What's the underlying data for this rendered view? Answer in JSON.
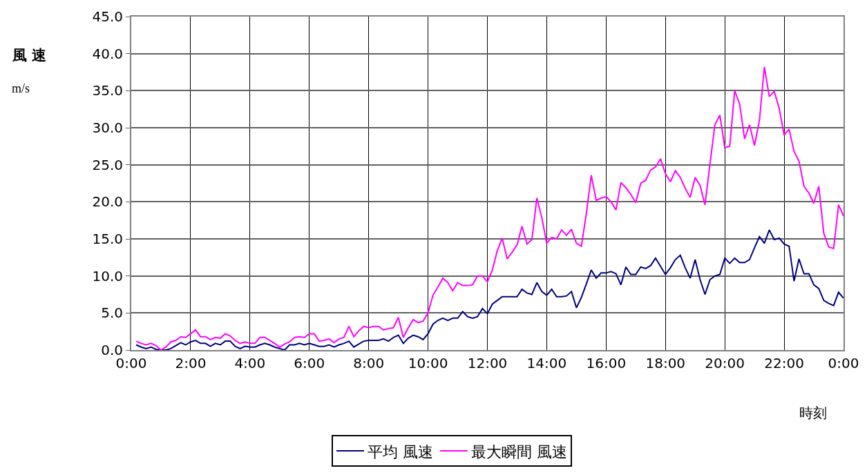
{
  "chart_data": {
    "type": "line",
    "ylabel": "風 速\nm/s",
    "xlabel": "時刻",
    "x": [
      0.167,
      0.333,
      0.5,
      0.667,
      0.833,
      1,
      1.167,
      1.333,
      1.5,
      1.667,
      1.833,
      2,
      2.167,
      2.333,
      2.5,
      2.667,
      2.833,
      3,
      3.167,
      3.333,
      3.5,
      3.667,
      3.833,
      4,
      4.167,
      4.333,
      4.5,
      4.667,
      4.833,
      5,
      5.167,
      5.333,
      5.5,
      5.667,
      5.833,
      6,
      6.167,
      6.333,
      6.5,
      6.667,
      6.833,
      7,
      7.167,
      7.333,
      7.5,
      7.667,
      7.833,
      8,
      8.167,
      8.333,
      8.5,
      8.667,
      8.833,
      9,
      9.167,
      9.333,
      9.5,
      9.667,
      9.833,
      10,
      10.167,
      10.333,
      10.5,
      10.667,
      10.833,
      11,
      11.167,
      11.333,
      11.5,
      11.667,
      11.833,
      12,
      12.167,
      12.333,
      12.5,
      12.667,
      12.833,
      13,
      13.167,
      13.333,
      13.5,
      13.667,
      13.833,
      14,
      14.167,
      14.333,
      14.5,
      14.667,
      14.833,
      15,
      15.167,
      15.333,
      15.5,
      15.667,
      15.833,
      16,
      16.167,
      16.333,
      16.5,
      16.667,
      16.833,
      17,
      17.167,
      17.333,
      17.5,
      17.667,
      17.833,
      18,
      18.167,
      18.333,
      18.5,
      18.667,
      18.833,
      19,
      19.167,
      19.333,
      19.5,
      19.667,
      19.833,
      20,
      20.167,
      20.333,
      20.5,
      20.667,
      20.833,
      21,
      21.167,
      21.333,
      21.5,
      21.667,
      21.833,
      22,
      22.167,
      22.333,
      22.5,
      22.667,
      22.833,
      23,
      23.167,
      23.333,
      23.5,
      23.667,
      23.833,
      24
    ],
    "series": [
      {
        "name": "平均 風速",
        "color": "#000080",
        "values": [
          0.7,
          0.4,
          0.2,
          0.4,
          0.1,
          0,
          0,
          0.2,
          0.6,
          1.0,
          0.7,
          1.1,
          1.3,
          0.9,
          0.9,
          0.5,
          0.9,
          0.7,
          1.2,
          1.2,
          0.5,
          0.2,
          0.5,
          0.4,
          0.4,
          0.7,
          0.9,
          0.7,
          0.4,
          0.2,
          0,
          0.7,
          0.7,
          0.9,
          0.7,
          0.9,
          0.7,
          0.5,
          0.5,
          0.7,
          0.4,
          0.7,
          0.9,
          1.2,
          0.4,
          0.8,
          1.2,
          1.3,
          1.3,
          1.3,
          1.5,
          1.2,
          1.7,
          2.0,
          0.9,
          1.6,
          2.0,
          1.8,
          1.4,
          2.2,
          3.5,
          4.0,
          4.3,
          4.0,
          4.3,
          4.3,
          5.2,
          4.5,
          4.3,
          4.5,
          5.6,
          4.9,
          6.2,
          6.7,
          7.2,
          7.2,
          7.2,
          7.2,
          8.2,
          7.7,
          7.5,
          9.1,
          7.9,
          7.4,
          8.2,
          7.2,
          7.2,
          7.3,
          7.9,
          5.7,
          7.1,
          8.9,
          10.8,
          9.7,
          10.4,
          10.4,
          10.6,
          10.3,
          8.8,
          11.2,
          10.2,
          10.2,
          11.2,
          11.0,
          11.4,
          12.4,
          11.3,
          10.2,
          11.1,
          12.2,
          12.8,
          11.1,
          9.7,
          12.2,
          9.5,
          7.5,
          9.5,
          10.0,
          10.2,
          12.4,
          11.7,
          12.4,
          11.8,
          11.8,
          12.2,
          13.8,
          15.3,
          14.4,
          16.2,
          14.9,
          15.1,
          14.3,
          14.0,
          9.3,
          12.3,
          10.3,
          10.3,
          8.8,
          8.3,
          6.7,
          6.3,
          6.0,
          7.8,
          7.0
        ]
      },
      {
        "name": "最大瞬間 風速",
        "color": "#ff00ff",
        "values": [
          1.2,
          0.9,
          0.7,
          0.9,
          0.6,
          0,
          0.4,
          1.1,
          1.3,
          1.8,
          1.7,
          2.2,
          2.7,
          1.8,
          1.8,
          1.4,
          1.7,
          1.6,
          2.2,
          1.9,
          1.3,
          0.9,
          1.1,
          0.9,
          0.9,
          1.7,
          1.7,
          1.3,
          0.9,
          0.4,
          0.8,
          1.1,
          1.7,
          1.8,
          1.7,
          2.2,
          2.2,
          1.2,
          1.3,
          1.5,
          1.0,
          1.5,
          1.7,
          3.2,
          1.8,
          2.6,
          3.2,
          3.0,
          3.2,
          3.2,
          2.7,
          2.9,
          3.0,
          4.4,
          1.7,
          3.0,
          4.1,
          3.7,
          3.9,
          5.0,
          7.4,
          8.5,
          9.7,
          9.1,
          8.0,
          9.1,
          8.7,
          8.7,
          8.8,
          10.0,
          10.0,
          9.2,
          10.8,
          13.4,
          15.1,
          12.3,
          13.2,
          14.2,
          16.7,
          14.3,
          14.9,
          20.5,
          17.9,
          14.4,
          15.2,
          15.0,
          16.2,
          15.5,
          16.3,
          14.4,
          14.0,
          18.4,
          23.6,
          20.2,
          20.5,
          20.7,
          20.0,
          18.9,
          22.6,
          21.9,
          21.0,
          19.9,
          22.5,
          22.9,
          24.3,
          24.7,
          25.8,
          23.8,
          22.7,
          24.2,
          23.3,
          21.8,
          20.6,
          23.3,
          22.2,
          19.6,
          25.1,
          30.4,
          31.7,
          27.3,
          27.5,
          35.0,
          33.2,
          28.5,
          30.4,
          27.6,
          31.0,
          38.2,
          34.2,
          34.9,
          32.6,
          29.0,
          29.8,
          26.8,
          25.5,
          22.1,
          21.2,
          19.8,
          22.1,
          15.8,
          13.9,
          13.7,
          19.6,
          18.1
        ]
      }
    ],
    "xlim": [
      0,
      24
    ],
    "xticks": [
      {
        "value": 0,
        "label": "0:00"
      },
      {
        "value": 2,
        "label": "2:00"
      },
      {
        "value": 4,
        "label": "4:00"
      },
      {
        "value": 6,
        "label": "6:00"
      },
      {
        "value": 8,
        "label": "8:00"
      },
      {
        "value": 10,
        "label": "10:00"
      },
      {
        "value": 12,
        "label": "12:00"
      },
      {
        "value": 14,
        "label": "14:00"
      },
      {
        "value": 16,
        "label": "16:00"
      },
      {
        "value": 18,
        "label": "18:00"
      },
      {
        "value": 20,
        "label": "20:00"
      },
      {
        "value": 22,
        "label": "22:00"
      },
      {
        "value": 24,
        "label": "0:00"
      }
    ],
    "ylim": [
      0,
      45
    ],
    "yticks": [
      {
        "value": 0,
        "label": "0.0"
      },
      {
        "value": 5,
        "label": "5.0"
      },
      {
        "value": 10,
        "label": "10.0"
      },
      {
        "value": 15,
        "label": "15.0"
      },
      {
        "value": 20,
        "label": "20.0"
      },
      {
        "value": 25,
        "label": "25.0"
      },
      {
        "value": 30,
        "label": "30.0"
      },
      {
        "value": 35,
        "label": "35.0"
      },
      {
        "value": 40,
        "label": "40.0"
      },
      {
        "value": 45,
        "label": "45.0"
      }
    ],
    "grid": true,
    "legend": "bottom",
    "marker": "none",
    "line_style": "solid"
  }
}
